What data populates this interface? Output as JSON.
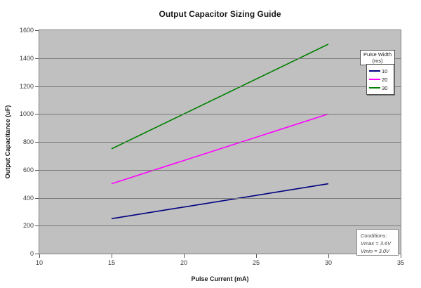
{
  "title": "Output Capacitor Sizing Guide",
  "chart_data": {
    "type": "line",
    "title": "Output Capacitor Sizing Guide",
    "xlabel": "Pulse Current (mA)",
    "ylabel": "Output Capacitance (uF)",
    "xlim": [
      10,
      35
    ],
    "ylim": [
      0,
      1600
    ],
    "x_ticks": [
      10,
      15,
      20,
      25,
      30,
      35
    ],
    "y_ticks": [
      0,
      200,
      400,
      600,
      800,
      1000,
      1200,
      1400,
      1600
    ],
    "grid": "horizontal-only",
    "plot_background": "#c0c0c0",
    "gridline_color": "#7a7a7a",
    "legend_position": "top-right",
    "legend_title": "Pulse Width (ms)",
    "series": [
      {
        "name": "10",
        "color": "#000080",
        "points": [
          [
            15,
            250
          ],
          [
            30,
            500
          ]
        ]
      },
      {
        "name": "20",
        "color": "#ff00ff",
        "points": [
          [
            15,
            500
          ],
          [
            30,
            1000
          ]
        ]
      },
      {
        "name": "30",
        "color": "#008000",
        "points": [
          [
            15,
            750
          ],
          [
            30,
            1500
          ]
        ]
      }
    ]
  },
  "legend": {
    "title_line1": "Pulse Width",
    "title_line2": "(ms)",
    "entries": [
      {
        "label": "10",
        "color": "#000080"
      },
      {
        "label": "20",
        "color": "#ff00ff"
      },
      {
        "label": "30",
        "color": "#008000"
      }
    ]
  },
  "annotation": {
    "lines": [
      "Conditions:",
      "Vmax = 3.6V",
      "Vmin = 3.0V"
    ]
  }
}
